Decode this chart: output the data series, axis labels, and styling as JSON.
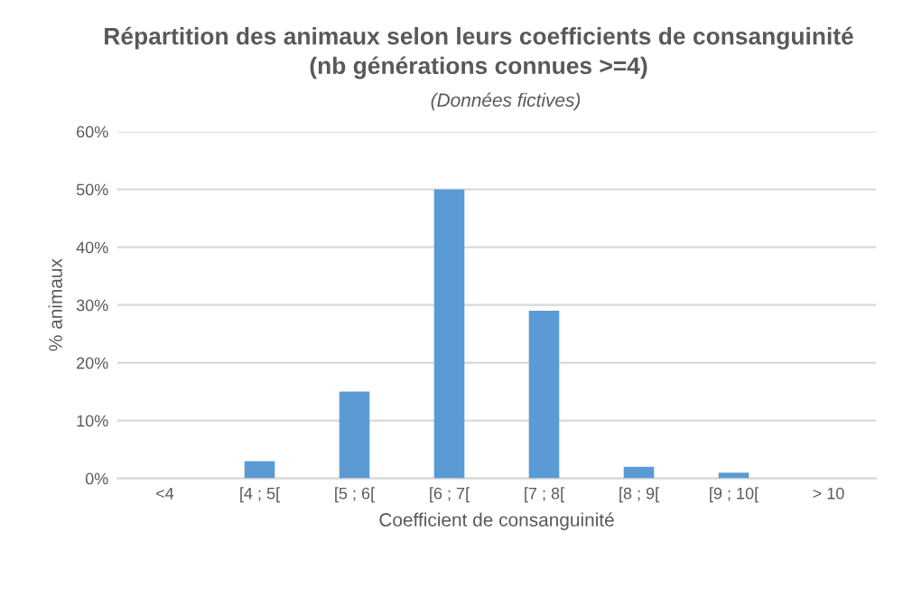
{
  "chart_data": {
    "type": "bar",
    "title": "Répartition des animaux selon leurs coefficients de consanguinité\n(nb générations connues >=4)",
    "subtitle": "(Données fictives)",
    "xlabel": "Coefficient de consanguinité",
    "ylabel": "% animaux",
    "categories": [
      "<4",
      "[4 ; 5[",
      "[5 ; 6[",
      "[6 ; 7[",
      "[7 ; 8[",
      "[8 ; 9[",
      "[9 ; 10[",
      "> 10"
    ],
    "values": [
      0,
      3,
      15,
      50,
      29,
      2,
      1,
      0
    ],
    "color": "#5b9bd5",
    "ylim": [
      0,
      60
    ],
    "yticks": [
      {
        "value": 0,
        "label": "0%"
      },
      {
        "value": 10,
        "label": "10%"
      },
      {
        "value": 20,
        "label": "20%"
      },
      {
        "value": 30,
        "label": "30%"
      },
      {
        "value": 40,
        "label": "40%"
      },
      {
        "value": 50,
        "label": "50%"
      },
      {
        "value": 60,
        "label": "60%"
      }
    ],
    "grid": "y"
  }
}
